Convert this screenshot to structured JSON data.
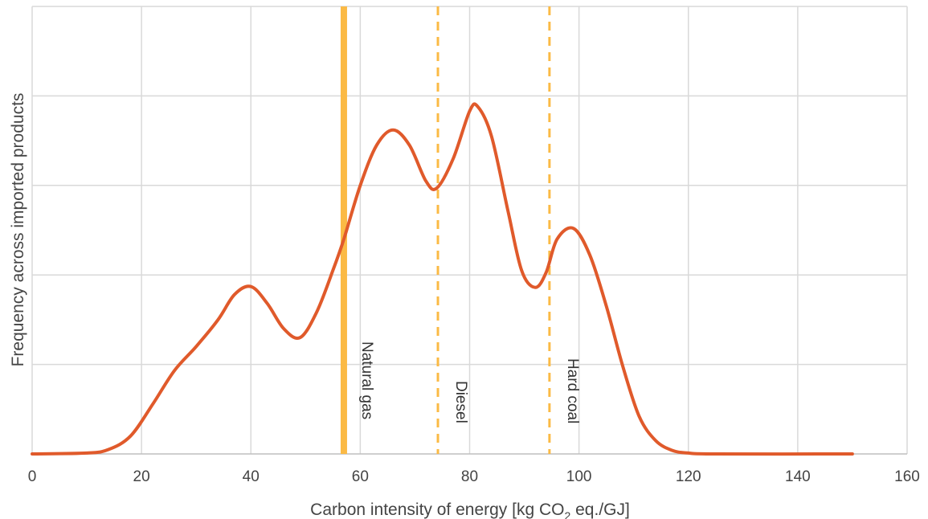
{
  "chart_data": {
    "type": "line",
    "xlabel_main": "Carbon intensity of energy [kg CO",
    "xlabel_sub": "2",
    "xlabel_tail": " eq./GJ]",
    "ylabel": "Frequency across imported products",
    "xlim": [
      0,
      160
    ],
    "ylim": [
      0,
      5
    ],
    "x_ticks": [
      "0",
      "20",
      "40",
      "60",
      "80",
      "100",
      "120",
      "140",
      "160"
    ],
    "y_grid": [
      1,
      2,
      3,
      4,
      5
    ],
    "grid": true,
    "series": [
      {
        "color": "#E05A2B",
        "x": [
          0,
          10,
          14,
          18,
          22,
          26,
          30,
          34,
          37,
          40,
          43,
          46,
          49,
          52,
          55,
          57,
          60,
          63,
          66,
          69,
          72,
          74,
          77,
          80,
          81.5,
          84,
          87,
          89.5,
          92,
          94,
          96,
          99,
          102,
          105,
          108,
          111,
          114,
          117,
          120,
          125,
          150
        ],
        "y": [
          0,
          0.01,
          0.05,
          0.2,
          0.55,
          0.93,
          1.2,
          1.5,
          1.78,
          1.87,
          1.68,
          1.4,
          1.3,
          1.58,
          2.05,
          2.4,
          3.0,
          3.45,
          3.62,
          3.45,
          3.05,
          2.97,
          3.3,
          3.83,
          3.88,
          3.55,
          2.72,
          2.05,
          1.86,
          2.03,
          2.4,
          2.52,
          2.22,
          1.65,
          0.98,
          0.42,
          0.15,
          0.04,
          0.01,
          0,
          0
        ]
      }
    ],
    "reference_lines": [
      {
        "x": 57,
        "label": "Natural gas",
        "style": "solid",
        "color": "#FBBA45"
      },
      {
        "x": 74.2,
        "label": "Diesel",
        "style": "dashed",
        "color": "#FBBA45"
      },
      {
        "x": 94.6,
        "label": "Hard coal",
        "style": "dashed",
        "color": "#FBBA45"
      }
    ]
  }
}
